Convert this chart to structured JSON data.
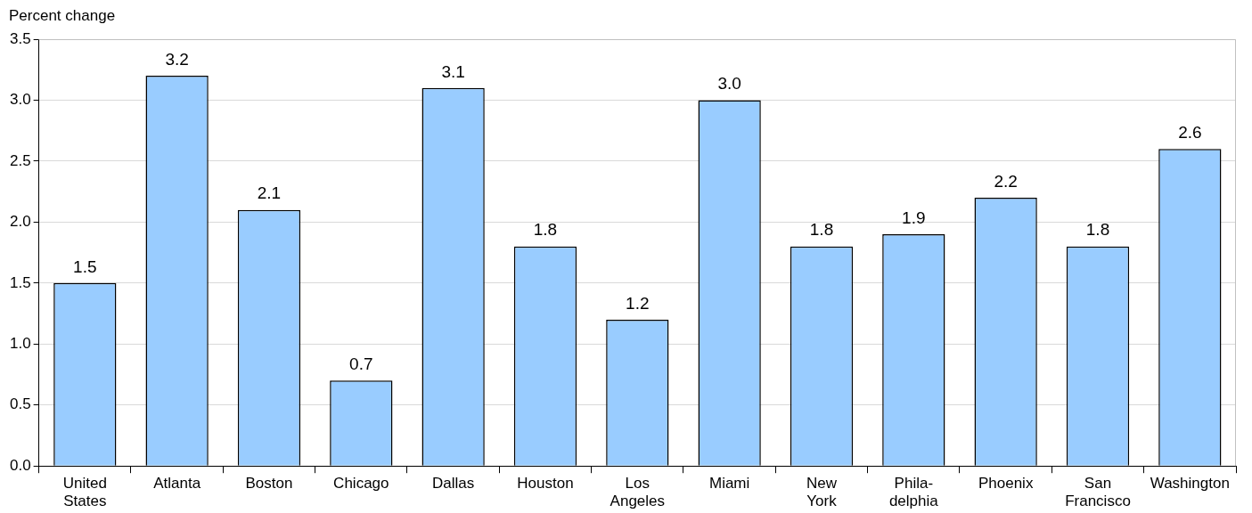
{
  "chart_data": {
    "type": "bar",
    "ylabel": "Percent change",
    "categories": [
      "United States",
      "Atlanta",
      "Boston",
      "Chicago",
      "Dallas",
      "Houston",
      "Los Angeles",
      "Miami",
      "New York",
      "Phila-delphia",
      "Phoenix",
      "San Francisco",
      "Washington"
    ],
    "values": [
      1.5,
      3.2,
      2.1,
      0.7,
      3.1,
      1.8,
      1.2,
      3.0,
      1.8,
      1.9,
      2.2,
      1.8,
      2.6
    ],
    "color": "#99ccff",
    "ylim": [
      0,
      3.5
    ],
    "yticks": [
      {
        "value": 0,
        "label": "0.0"
      },
      {
        "value": 0.5,
        "label": "0.5"
      },
      {
        "value": 1,
        "label": "1.0"
      },
      {
        "value": 1.5,
        "label": "1.5"
      },
      {
        "value": 2,
        "label": "2.0"
      },
      {
        "value": 2.5,
        "label": "2.5"
      },
      {
        "value": 3,
        "label": "3.0"
      },
      {
        "value": 3.5,
        "label": "3.5"
      }
    ],
    "value_labels": [
      "1.5",
      "3.2",
      "2.1",
      "0.7",
      "3.1",
      "1.8",
      "1.2",
      "3.0",
      "1.8",
      "1.9",
      "2.2",
      "1.8",
      "2.6"
    ],
    "grid": "y",
    "legend": false
  }
}
